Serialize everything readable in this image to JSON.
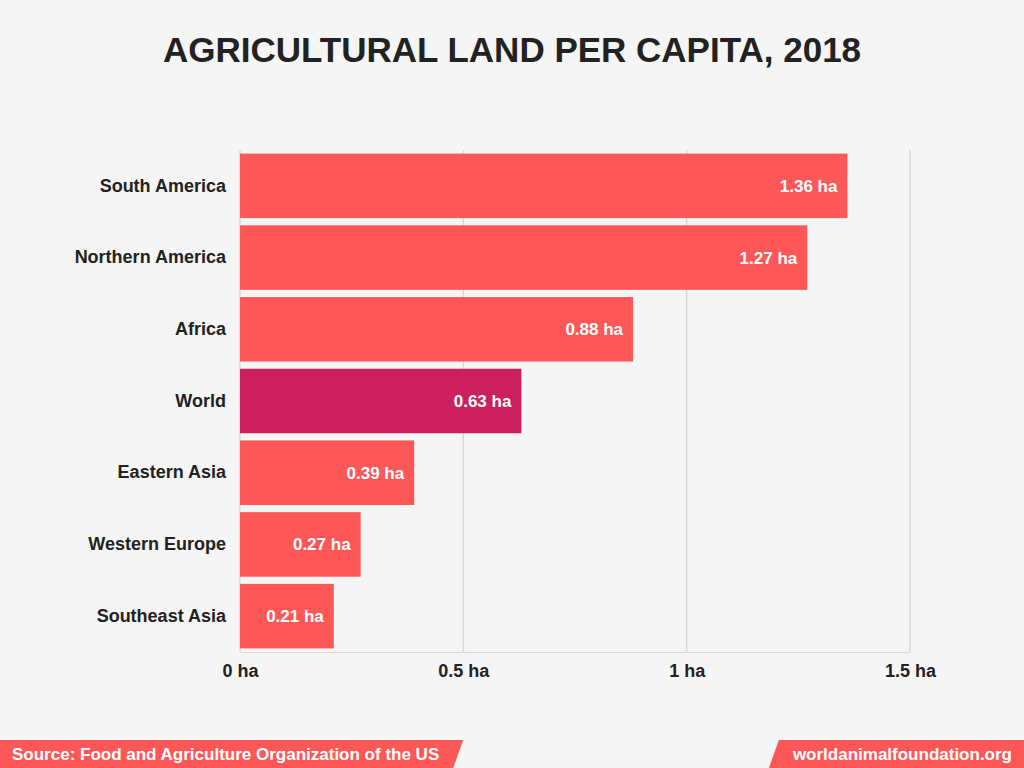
{
  "chart_data": {
    "type": "bar",
    "orientation": "horizontal",
    "title": "AGRICULTURAL LAND PER CAPITA, 2018",
    "categories": [
      "South America",
      "Northern America",
      "Africa",
      "World",
      "Eastern Asia",
      "Western Europe",
      "Southeast Asia"
    ],
    "values": [
      1.36,
      1.27,
      0.88,
      0.63,
      0.39,
      0.27,
      0.21
    ],
    "value_labels": [
      "1.36 ha",
      "1.27 ha",
      "0.88 ha",
      "0.63 ha",
      "0.39 ha",
      "0.27 ha",
      "0.21 ha"
    ],
    "colors": [
      "#fe5757",
      "#fe5757",
      "#fe5757",
      "#cc1f5e",
      "#fe5757",
      "#fe5757",
      "#fe5757"
    ],
    "xlim": [
      0,
      1.5
    ],
    "xticks": [
      {
        "value": 0,
        "label": "0 ha"
      },
      {
        "value": 0.5,
        "label": "0.5 ha"
      },
      {
        "value": 1,
        "label": "1 ha"
      },
      {
        "value": 1.5,
        "label": "1.5 ha"
      }
    ],
    "grid": true,
    "data_labels": true,
    "annotations": [
      "Source: Food and Agriculture Organization of the US",
      "worldanimalfoundation.org"
    ]
  }
}
